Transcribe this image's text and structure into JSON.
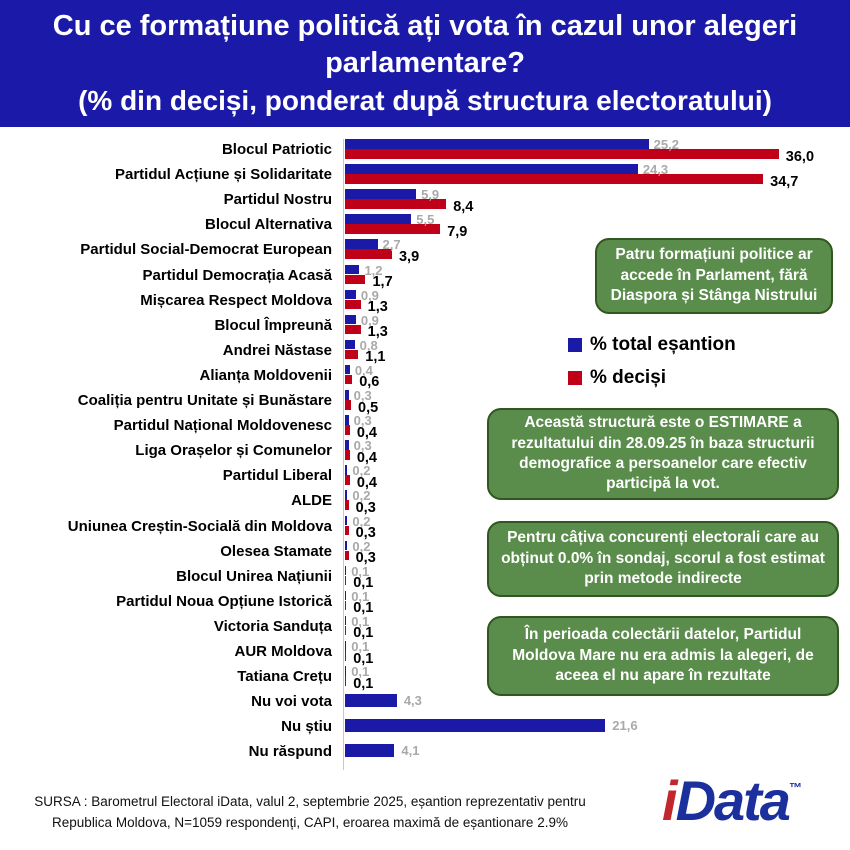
{
  "header": {
    "title": "Cu ce formațiune politică ați vota în cazul unor alegeri parlamentare?",
    "subtitle": "(% din deciși, ponderat după structura electoratului)",
    "bg_color": "#1b19a8",
    "text_color": "#ffffff"
  },
  "legend": {
    "items": [
      {
        "label": "% total eșantion",
        "color": "#1b1aa6"
      },
      {
        "label": "% deciși",
        "color": "#c00018"
      }
    ]
  },
  "annotations": [
    {
      "text": "Patru formațiuni politice ar accede în Parlament, fără Diaspora și Stânga Nistrului"
    },
    {
      "text": "Această structură este o ESTIMARE a rezultatului din 28.09.25 în baza structurii demografice a persoanelor care efectiv participă la vot."
    },
    {
      "text": "Pentru câțiva concurenți electorali care au obținut 0.0% în sondaj, scorul a fost estimat prin metode indirecte"
    },
    {
      "text": "În perioada colectării datelor, Partidul Moldova Mare nu era admis la alegeri, de aceea el nu apare în rezultate"
    }
  ],
  "annotation_style": {
    "bg": "#5a8c4b",
    "border": "#2f571f",
    "text": "#ffffff"
  },
  "chart_data": {
    "type": "bar",
    "orientation": "horizontal",
    "title": "Cu ce formațiune politică ați vota în cazul unor alegeri parlamentare? (% din deciși, ponderat după structura electoratului)",
    "xlim": [
      0,
      36
    ],
    "grid": false,
    "legend_position": "right",
    "decimal_separator": ",",
    "categories": [
      "Blocul Patriotic",
      "Partidul Acțiune și Solidaritate",
      "Partidul Nostru",
      "Blocul Alternativa",
      "Partidul Social-Democrat European",
      "Partidul Democrația Acasă",
      "Mișcarea Respect Moldova",
      "Blocul Împreună",
      "Andrei Năstase",
      "Alianța Moldovenii",
      "Coaliția pentru Unitate și Bunăstare",
      "Partidul Național Moldovenesc",
      "Liga Orașelor și Comunelor",
      "Partidul Liberal",
      "ALDE",
      "Uniunea Creștin-Socială din Moldova",
      "Olesea Stamate",
      "Blocul Unirea Națiunii",
      "Partidul Noua Opțiune Istorică",
      "Victoria Sanduța",
      "AUR Moldova",
      "Tatiana Crețu",
      "Nu voi vota",
      "Nu știu",
      "Nu răspund"
    ],
    "series": [
      {
        "name": "% total eșantion",
        "color": "#1b1aa6",
        "label_color": "#a9a9a9",
        "values": [
          25.2,
          24.3,
          5.9,
          5.5,
          2.7,
          1.2,
          0.9,
          0.9,
          0.8,
          0.4,
          0.3,
          0.3,
          0.3,
          0.2,
          0.2,
          0.2,
          0.2,
          0.1,
          0.1,
          0.1,
          0.1,
          0.1,
          4.3,
          21.6,
          4.1
        ]
      },
      {
        "name": "% deciși",
        "color": "#c00018",
        "label_color": "#000000",
        "values": [
          36.0,
          34.7,
          8.4,
          7.9,
          3.9,
          1.7,
          1.3,
          1.3,
          1.1,
          0.6,
          0.5,
          0.4,
          0.4,
          0.4,
          0.3,
          0.3,
          0.3,
          0.1,
          0.1,
          0.1,
          0.1,
          0.1,
          null,
          null,
          null
        ]
      }
    ]
  },
  "source": {
    "text": "SURSA : Barometrul Electoral iData, valul 2, septembrie 2025, eșantion reprezentativ pentru Republica Moldova, N=1059 respondenți, CAPI, eroarea maximă de eșantionare 2.9%"
  },
  "logo": {
    "i": "i",
    "rest": "Data",
    "tm": "™",
    "i_color": "#c1272d",
    "rest_color": "#1b2f9d"
  }
}
